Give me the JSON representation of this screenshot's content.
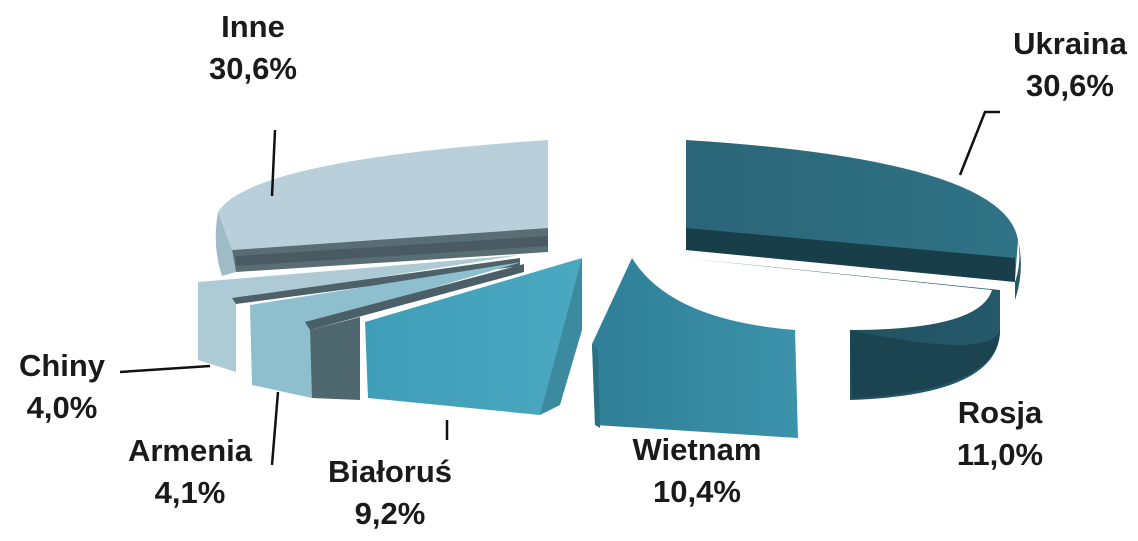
{
  "chart_data": {
    "type": "pie",
    "variant": "3d-exploded",
    "title": "",
    "slices": [
      {
        "label": "Ukraina",
        "value": 30.6,
        "text": "30,6%",
        "color": "#2e6e80"
      },
      {
        "label": "Rosja",
        "value": 11.0,
        "text": "11,0%",
        "color": "#1f4f5e"
      },
      {
        "label": "Wietnam",
        "value": 10.4,
        "text": "10,4%",
        "color": "#3a8fa6"
      },
      {
        "label": "Białoruś",
        "value": 9.2,
        "text": "9,2%",
        "color": "#45a3bd"
      },
      {
        "label": "Armenia",
        "value": 4.1,
        "text": "4,1%",
        "color": "#8cbccc"
      },
      {
        "label": "Chiny",
        "value": 4.0,
        "text": "4,0%",
        "color": "#a9cdd8"
      },
      {
        "label": "Inne",
        "value": 30.6,
        "text": "30,6%",
        "color": "#b8d2dc"
      }
    ],
    "legend": "none"
  }
}
